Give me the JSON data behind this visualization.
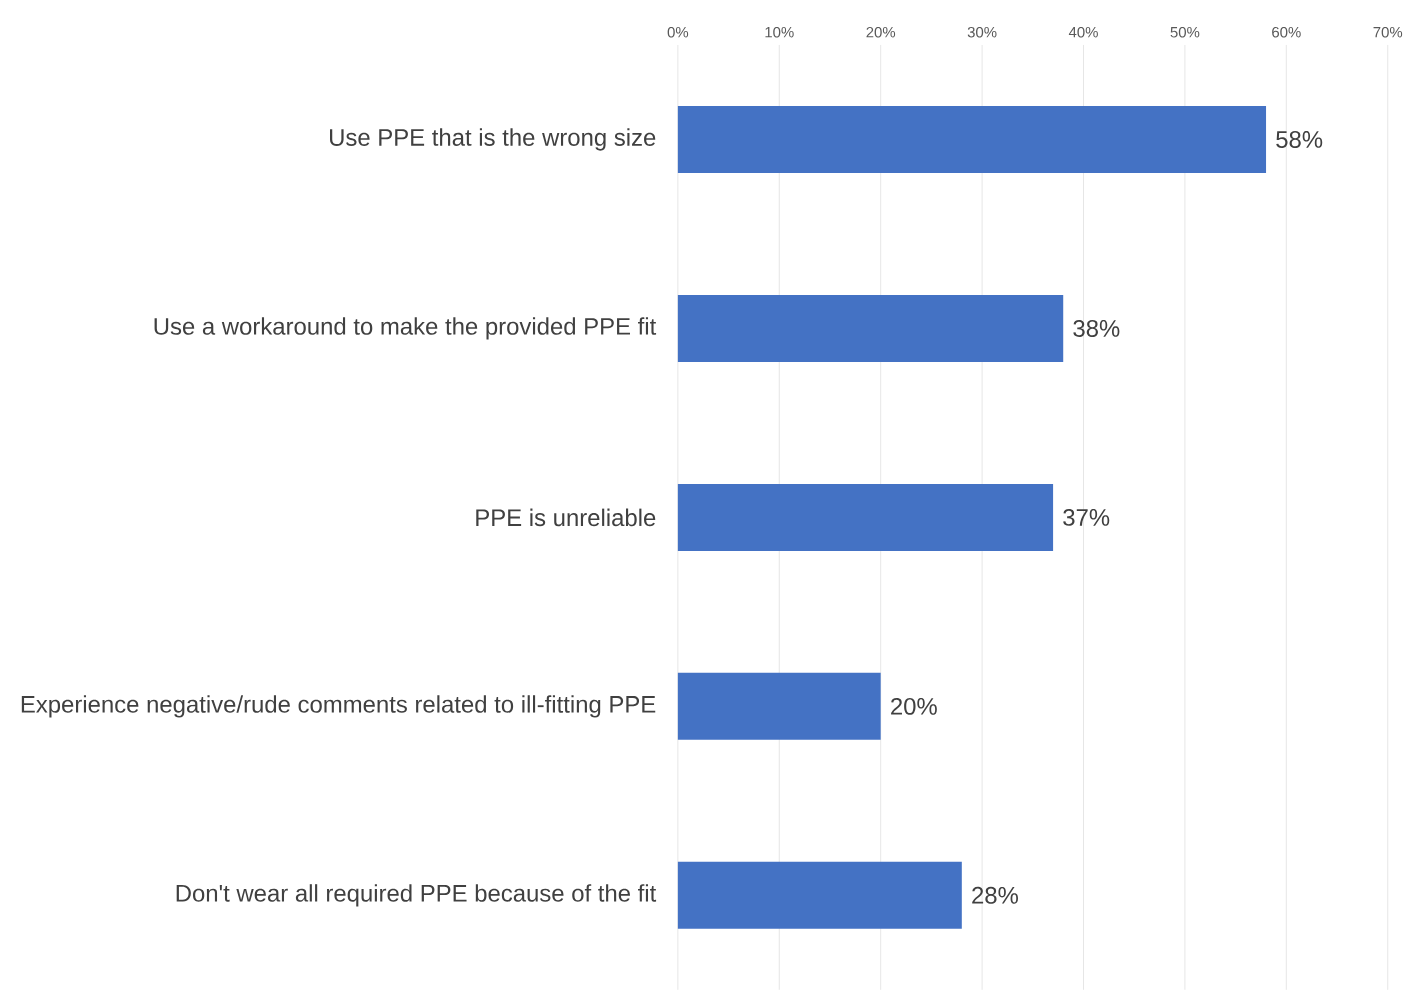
{
  "chart_data": {
    "type": "bar",
    "orientation": "horizontal",
    "categories": [
      "Use PPE that is the wrong size",
      "Use a workaround to make the provided PPE fit",
      "PPE is unreliable",
      "Experience negative/rude comments related to ill-fitting PPE",
      "Don't wear all required PPE because of the fit"
    ],
    "values": [
      58,
      38,
      37,
      20,
      28
    ],
    "value_labels": [
      "58%",
      "38%",
      "37%",
      "20%",
      "28%"
    ],
    "color": "#4472c4",
    "xlim": [
      0,
      70
    ],
    "xticks": [
      {
        "value": 0,
        "label": "0%"
      },
      {
        "value": 10,
        "label": "10%"
      },
      {
        "value": 20,
        "label": "20%"
      },
      {
        "value": 30,
        "label": "30%"
      },
      {
        "value": 40,
        "label": "40%"
      },
      {
        "value": 50,
        "label": "50%"
      },
      {
        "value": 60,
        "label": "60%"
      },
      {
        "value": 70,
        "label": "70%"
      }
    ],
    "grid": "x"
  }
}
